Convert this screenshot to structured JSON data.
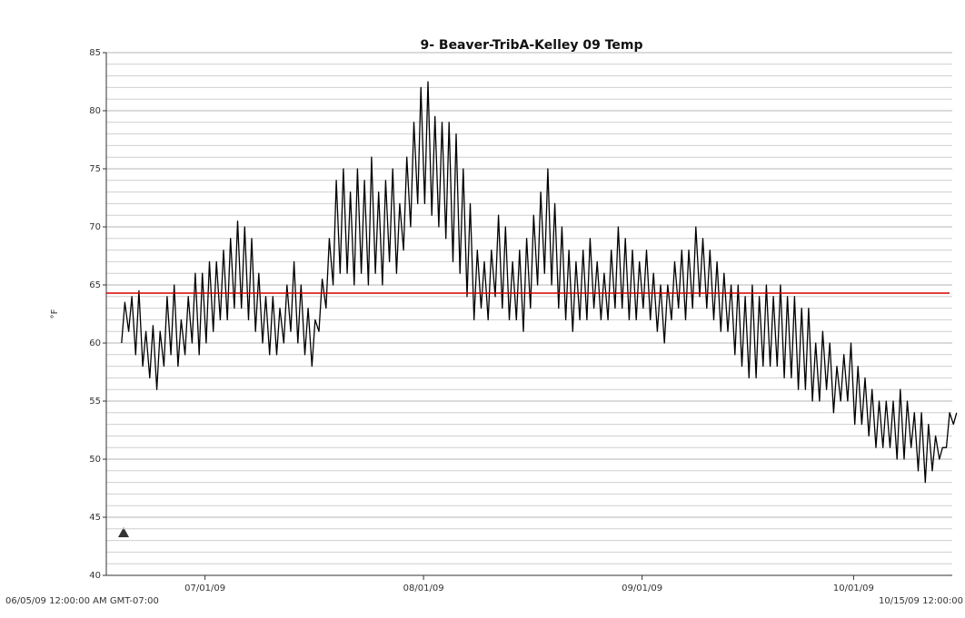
{
  "chart_data": {
    "type": "line",
    "title": "9- Beaver-TribA-Kelley 09 Temp",
    "y_label": "°F",
    "start_label": "06/05/09 12:00:00 AM GMT-07:00",
    "end_label": "10/15/09 12:00:00",
    "xlim": [
      "2009-06-17T00:00",
      "2009-10-15T00:00"
    ],
    "xticks": [
      {
        "value": "2009-07-01T00:00",
        "label": "07/01/09"
      },
      {
        "value": "2009-08-01T00:00",
        "label": "08/01/09"
      },
      {
        "value": "2009-09-01T00:00",
        "label": "09/01/09"
      },
      {
        "value": "2009-10-01T00:00",
        "label": "10/01/09"
      }
    ],
    "ylim": [
      40,
      85
    ],
    "yticks": [
      40,
      45,
      50,
      55,
      60,
      65,
      70,
      75,
      80,
      85
    ],
    "grid": true,
    "minor_step": 1,
    "threshold": {
      "value": 64.3,
      "color": "#d40000"
    },
    "x": [
      "2009-06-19T04:00",
      "2009-06-19T15:00",
      "2009-06-20T04:00",
      "2009-06-20T15:00",
      "2009-06-21T04:00",
      "2009-06-21T15:00",
      "2009-06-22T04:00",
      "2009-06-22T15:00",
      "2009-06-23T04:00",
      "2009-06-23T15:00",
      "2009-06-24T04:00",
      "2009-06-24T15:00",
      "2009-06-25T04:00",
      "2009-06-25T15:00",
      "2009-06-26T04:00",
      "2009-06-26T15:00",
      "2009-06-27T04:00",
      "2009-06-27T15:00",
      "2009-06-28T04:00",
      "2009-06-28T15:00",
      "2009-06-29T04:00",
      "2009-06-29T15:00",
      "2009-06-30T04:00",
      "2009-06-30T15:00",
      "2009-07-01T04:00",
      "2009-07-01T15:00",
      "2009-07-02T04:00",
      "2009-07-02T15:00",
      "2009-07-03T04:00",
      "2009-07-03T15:00",
      "2009-07-04T04:00",
      "2009-07-04T15:00",
      "2009-07-05T04:00",
      "2009-07-05T15:00",
      "2009-07-06T04:00",
      "2009-07-06T15:00",
      "2009-07-07T04:00",
      "2009-07-07T15:00",
      "2009-07-08T04:00",
      "2009-07-08T15:00",
      "2009-07-09T04:00",
      "2009-07-09T15:00",
      "2009-07-10T04:00",
      "2009-07-10T15:00",
      "2009-07-11T04:00",
      "2009-07-11T15:00",
      "2009-07-12T04:00",
      "2009-07-12T15:00",
      "2009-07-13T04:00",
      "2009-07-13T15:00",
      "2009-07-14T04:00",
      "2009-07-14T15:00",
      "2009-07-15T04:00",
      "2009-07-15T15:00",
      "2009-07-16T04:00",
      "2009-07-16T15:00",
      "2009-07-17T04:00",
      "2009-07-17T15:00",
      "2009-07-18T04:00",
      "2009-07-18T15:00",
      "2009-07-19T04:00",
      "2009-07-19T15:00",
      "2009-07-20T04:00",
      "2009-07-20T15:00",
      "2009-07-21T04:00",
      "2009-07-21T15:00",
      "2009-07-22T04:00",
      "2009-07-22T15:00",
      "2009-07-23T04:00",
      "2009-07-23T15:00",
      "2009-07-24T04:00",
      "2009-07-24T15:00",
      "2009-07-25T04:00",
      "2009-07-25T15:00",
      "2009-07-26T04:00",
      "2009-07-26T15:00",
      "2009-07-27T04:00",
      "2009-07-27T15:00",
      "2009-07-28T04:00",
      "2009-07-28T15:00",
      "2009-07-29T04:00",
      "2009-07-29T15:00",
      "2009-07-30T04:00",
      "2009-07-30T15:00",
      "2009-07-31T04:00",
      "2009-07-31T15:00",
      "2009-08-01T04:00",
      "2009-08-01T15:00",
      "2009-08-02T04:00",
      "2009-08-02T15:00",
      "2009-08-03T04:00",
      "2009-08-03T15:00",
      "2009-08-04T04:00",
      "2009-08-04T15:00",
      "2009-08-05T04:00",
      "2009-08-05T15:00",
      "2009-08-06T04:00",
      "2009-08-06T15:00",
      "2009-08-07T04:00",
      "2009-08-07T15:00",
      "2009-08-08T04:00",
      "2009-08-08T15:00",
      "2009-08-09T04:00",
      "2009-08-09T15:00",
      "2009-08-10T04:00",
      "2009-08-10T15:00",
      "2009-08-11T04:00",
      "2009-08-11T15:00",
      "2009-08-12T04:00",
      "2009-08-12T15:00",
      "2009-08-13T04:00",
      "2009-08-13T15:00",
      "2009-08-14T04:00",
      "2009-08-14T15:00",
      "2009-08-15T04:00",
      "2009-08-15T15:00",
      "2009-08-16T04:00",
      "2009-08-16T15:00",
      "2009-08-17T04:00",
      "2009-08-17T15:00",
      "2009-08-18T04:00",
      "2009-08-18T15:00",
      "2009-08-19T04:00",
      "2009-08-19T15:00",
      "2009-08-20T04:00",
      "2009-08-20T15:00",
      "2009-08-21T04:00",
      "2009-08-21T15:00",
      "2009-08-22T04:00",
      "2009-08-22T15:00",
      "2009-08-23T04:00",
      "2009-08-23T15:00",
      "2009-08-24T04:00",
      "2009-08-24T15:00",
      "2009-08-25T04:00",
      "2009-08-25T15:00",
      "2009-08-26T04:00",
      "2009-08-26T15:00",
      "2009-08-27T04:00",
      "2009-08-27T15:00",
      "2009-08-28T04:00",
      "2009-08-28T15:00",
      "2009-08-29T04:00",
      "2009-08-29T15:00",
      "2009-08-30T04:00",
      "2009-08-30T15:00",
      "2009-08-31T04:00",
      "2009-08-31T15:00",
      "2009-09-01T04:00",
      "2009-09-01T15:00",
      "2009-09-02T04:00",
      "2009-09-02T15:00",
      "2009-09-03T04:00",
      "2009-09-03T15:00",
      "2009-09-04T04:00",
      "2009-09-04T15:00",
      "2009-09-05T04:00",
      "2009-09-05T15:00",
      "2009-09-06T04:00",
      "2009-09-06T15:00",
      "2009-09-07T04:00",
      "2009-09-07T15:00",
      "2009-09-08T04:00",
      "2009-09-08T15:00",
      "2009-09-09T04:00",
      "2009-09-09T15:00",
      "2009-09-10T04:00",
      "2009-09-10T15:00",
      "2009-09-11T04:00",
      "2009-09-11T15:00",
      "2009-09-12T04:00",
      "2009-09-12T15:00",
      "2009-09-13T04:00",
      "2009-09-13T15:00",
      "2009-09-14T04:00",
      "2009-09-14T15:00",
      "2009-09-15T04:00",
      "2009-09-15T15:00",
      "2009-09-16T04:00",
      "2009-09-16T15:00",
      "2009-09-17T04:00",
      "2009-09-17T15:00",
      "2009-09-18T04:00",
      "2009-09-18T15:00",
      "2009-09-19T04:00",
      "2009-09-19T15:00",
      "2009-09-20T04:00",
      "2009-09-20T15:00",
      "2009-09-21T04:00",
      "2009-09-21T15:00",
      "2009-09-22T04:00",
      "2009-09-22T15:00",
      "2009-09-23T04:00",
      "2009-09-23T15:00",
      "2009-09-24T04:00",
      "2009-09-24T15:00",
      "2009-09-25T04:00",
      "2009-09-25T15:00",
      "2009-09-26T04:00",
      "2009-09-26T15:00",
      "2009-09-27T04:00",
      "2009-09-27T15:00",
      "2009-09-28T04:00",
      "2009-09-28T15:00",
      "2009-09-29T04:00",
      "2009-09-29T15:00",
      "2009-09-30T04:00",
      "2009-09-30T15:00",
      "2009-10-01T04:00",
      "2009-10-01T15:00",
      "2009-10-02T04:00",
      "2009-10-02T15:00",
      "2009-10-03T04:00",
      "2009-10-03T15:00",
      "2009-10-04T04:00",
      "2009-10-04T15:00",
      "2009-10-05T04:00",
      "2009-10-05T15:00",
      "2009-10-06T04:00",
      "2009-10-06T15:00",
      "2009-10-07T04:00",
      "2009-10-07T15:00",
      "2009-10-08T04:00",
      "2009-10-08T15:00",
      "2009-10-09T04:00",
      "2009-10-09T15:00",
      "2009-10-10T04:00",
      "2009-10-10T15:00",
      "2009-10-11T04:00",
      "2009-10-11T15:00",
      "2009-10-12T04:00",
      "2009-10-12T15:00",
      "2009-10-13T04:00",
      "2009-10-13T15:00",
      "2009-10-14T04:00",
      "2009-10-14T15:00",
      "2009-10-15T04:00",
      "2009-10-15T15:00"
    ],
    "series": [
      {
        "name": "9- Beaver-TribA-Kelley 09 Temp",
        "color": "#000000",
        "values": [
          60,
          63.5,
          61,
          64,
          59,
          64.5,
          58,
          61,
          57,
          61.5,
          56,
          61,
          58,
          64,
          59,
          65,
          58,
          62,
          59,
          64,
          60,
          66,
          59,
          66,
          60,
          67,
          61,
          67,
          62,
          68,
          62,
          69,
          63,
          70.5,
          63,
          70,
          62,
          69,
          61,
          66,
          60,
          64,
          59,
          64,
          59,
          63,
          60,
          65,
          61,
          67,
          60,
          65,
          59,
          63,
          58,
          62,
          61,
          65.5,
          63,
          69,
          65,
          74,
          66,
          75,
          66,
          73,
          65,
          75,
          66,
          74,
          65,
          76,
          66,
          73,
          65,
          74,
          67,
          75,
          66,
          72,
          68,
          76,
          70,
          79,
          72,
          82,
          72,
          82.5,
          71,
          79.5,
          70,
          79,
          69,
          79,
          67,
          78,
          66,
          75,
          64,
          72,
          62,
          68,
          63,
          67,
          62,
          68,
          64,
          71,
          63,
          70,
          62,
          67,
          62,
          68,
          61,
          69,
          63,
          71,
          65,
          73,
          66,
          75,
          65,
          72,
          63,
          70,
          62,
          68,
          61,
          67,
          62,
          68,
          62,
          69,
          63,
          67,
          62,
          66,
          62,
          68,
          63,
          70,
          63,
          69,
          62,
          68,
          62,
          67,
          63,
          68,
          62,
          66,
          61,
          65,
          60,
          65,
          62,
          67,
          63,
          68,
          62,
          68,
          63,
          70,
          64,
          69,
          63,
          68,
          62,
          67,
          61,
          66,
          61,
          65,
          59,
          65,
          58,
          64,
          57,
          65,
          57,
          64,
          58,
          65,
          58,
          64,
          58,
          65,
          57,
          64,
          57,
          64,
          56,
          63,
          56,
          63,
          55,
          60,
          55,
          61,
          56,
          60,
          54,
          58,
          55,
          59,
          55,
          60,
          53,
          58,
          53,
          57,
          52,
          56,
          51,
          55,
          51,
          55,
          51,
          55,
          50,
          56,
          50,
          55,
          51,
          54,
          49,
          54,
          48,
          53,
          49,
          52,
          50,
          51,
          51,
          54,
          53,
          54
        ]
      }
    ]
  }
}
